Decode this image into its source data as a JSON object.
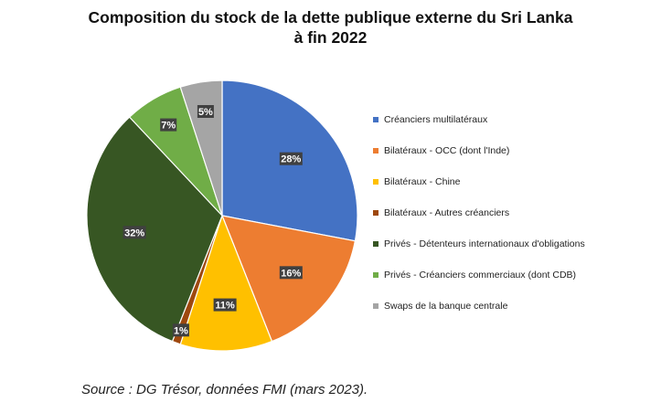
{
  "chart_data": {
    "type": "pie",
    "title_lines": [
      "Composition du stock de la dette publique externe du Sri Lanka",
      "à fin 2022"
    ],
    "slices": [
      {
        "label": "Créanciers multilatéraux",
        "value": 28,
        "display": "28%",
        "color": "#4472C4"
      },
      {
        "label": "Bilatéraux - OCC (dont l'Inde)",
        "value": 16,
        "display": "16%",
        "color": "#ED7D31"
      },
      {
        "label": "Bilatéraux - Chine",
        "value": 11,
        "display": "11%",
        "color": "#FFC000"
      },
      {
        "label": "Bilatéraux - Autres créanciers",
        "value": 1,
        "display": "1%",
        "color": "#9E480E"
      },
      {
        "label": "Privés - Détenteurs internationaux d'obligations",
        "value": 32,
        "display": "32%",
        "color": "#375623"
      },
      {
        "label": "Privés - Créanciers commerciaux (dont CDB)",
        "value": 7,
        "display": "7%",
        "color": "#70AD47"
      },
      {
        "label": "Swaps de la banque centrale",
        "value": 5,
        "display": "5%",
        "color": "#A5A5A5"
      }
    ],
    "start_angle_deg": 0,
    "direction": "clockwise",
    "legend_position": "right",
    "data_labels": "percent, boxed dark grey"
  },
  "source": "Source : DG Trésor, données FMI (mars 2023)."
}
